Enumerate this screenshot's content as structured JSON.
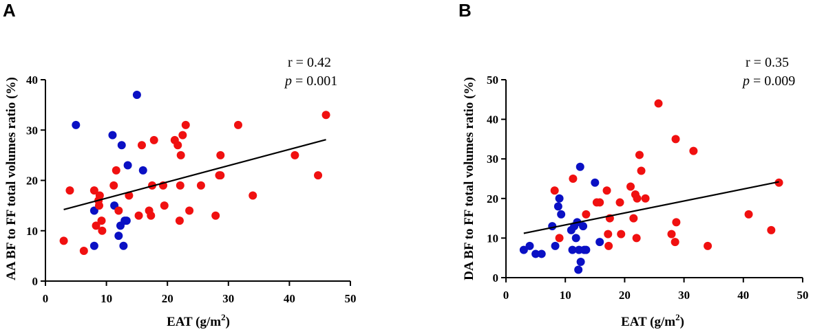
{
  "chart_data": [
    {
      "panel": "A",
      "type": "scatter",
      "xlabel": "EAT (g/m",
      "xlabel_sup": "2",
      "xlabel_close": ")",
      "ylabel": "AA BF to FF total volumes ratio  (%)",
      "xlim": [
        0,
        50
      ],
      "ylim": [
        0,
        40
      ],
      "xticks": [
        0,
        10,
        20,
        30,
        40,
        50
      ],
      "yticks": [
        0,
        10,
        20,
        30,
        40
      ],
      "r_text": "r = 0.42",
      "p_label": "p",
      "p_value": " = 0.001",
      "regression": {
        "x": [
          3,
          46
        ],
        "y": [
          14.2,
          28.1
        ]
      },
      "series": [
        {
          "name": "blue",
          "color": "#0a10c4",
          "points": [
            [
              5,
              31
            ],
            [
              8,
              14
            ],
            [
              8,
              7
            ],
            [
              11,
              29
            ],
            [
              11.3,
              15
            ],
            [
              12,
              9
            ],
            [
              12.3,
              11
            ],
            [
              12.5,
              27
            ],
            [
              12.8,
              7
            ],
            [
              13,
              12
            ],
            [
              13.3,
              12
            ],
            [
              13.5,
              23
            ],
            [
              15,
              37
            ],
            [
              16,
              22
            ]
          ]
        },
        {
          "name": "red",
          "color": "#f01010",
          "points": [
            [
              3,
              8
            ],
            [
              4,
              18
            ],
            [
              6.3,
              6
            ],
            [
              8,
              18
            ],
            [
              8.3,
              11
            ],
            [
              8.7,
              16
            ],
            [
              8.8,
              15
            ],
            [
              8.9,
              17
            ],
            [
              9.2,
              12
            ],
            [
              9.3,
              10
            ],
            [
              11.2,
              19
            ],
            [
              11.6,
              22
            ],
            [
              12,
              14
            ],
            [
              13.7,
              17
            ],
            [
              15.3,
              13
            ],
            [
              15.8,
              27
            ],
            [
              17,
              14
            ],
            [
              17.3,
              13
            ],
            [
              17.5,
              19
            ],
            [
              17.8,
              28
            ],
            [
              19.3,
              19
            ],
            [
              19.5,
              15
            ],
            [
              21.2,
              28
            ],
            [
              21.7,
              27
            ],
            [
              22,
              12
            ],
            [
              22.1,
              19
            ],
            [
              22.2,
              25
            ],
            [
              22.5,
              29
            ],
            [
              23,
              31
            ],
            [
              23.6,
              14
            ],
            [
              25.5,
              19
            ],
            [
              27.9,
              13
            ],
            [
              28.5,
              21
            ],
            [
              28.7,
              21
            ],
            [
              28.7,
              25
            ],
            [
              31.6,
              31
            ],
            [
              34,
              17
            ],
            [
              40.9,
              25
            ],
            [
              44.7,
              21
            ],
            [
              46,
              33
            ]
          ]
        }
      ]
    },
    {
      "panel": "B",
      "type": "scatter",
      "xlabel": "EAT (g/m",
      "xlabel_sup": "2",
      "xlabel_close": ")",
      "ylabel": "DA BF to FF total volumes ratio  (%)",
      "xlim": [
        0,
        50
      ],
      "ylim": [
        0,
        50
      ],
      "xticks": [
        0,
        10,
        20,
        30,
        40,
        50
      ],
      "yticks": [
        0,
        10,
        20,
        30,
        40,
        50
      ],
      "r_text": "r = 0.35",
      "p_label": "p",
      "p_value": " = 0.009",
      "regression": {
        "x": [
          3,
          46
        ],
        "y": [
          11.2,
          24.2
        ]
      },
      "series": [
        {
          "name": "blue",
          "color": "#0a10c4",
          "points": [
            [
              3,
              7
            ],
            [
              4,
              8
            ],
            [
              5,
              6
            ],
            [
              6,
              6
            ],
            [
              7.8,
              13
            ],
            [
              8.3,
              8
            ],
            [
              8.8,
              18
            ],
            [
              9,
              20
            ],
            [
              9.3,
              16
            ],
            [
              11,
              12
            ],
            [
              11.2,
              7
            ],
            [
              11.5,
              13
            ],
            [
              11.8,
              10
            ],
            [
              12,
              14
            ],
            [
              12.2,
              2
            ],
            [
              12.3,
              7
            ],
            [
              12.5,
              28
            ],
            [
              12.6,
              4
            ],
            [
              13,
              13
            ],
            [
              13.2,
              7
            ],
            [
              13.5,
              7
            ],
            [
              15,
              24
            ],
            [
              15.8,
              9
            ]
          ]
        },
        {
          "name": "red",
          "color": "#f01010",
          "points": [
            [
              8.2,
              22
            ],
            [
              9,
              10
            ],
            [
              11.3,
              25
            ],
            [
              13.5,
              16
            ],
            [
              15.3,
              19
            ],
            [
              15.8,
              19
            ],
            [
              17,
              22
            ],
            [
              17.2,
              11
            ],
            [
              17.3,
              8
            ],
            [
              17.5,
              15
            ],
            [
              19.2,
              19
            ],
            [
              19.4,
              11
            ],
            [
              21,
              23
            ],
            [
              21.5,
              15
            ],
            [
              21.8,
              21
            ],
            [
              22,
              10
            ],
            [
              22.1,
              20
            ],
            [
              22.5,
              31
            ],
            [
              22.8,
              27
            ],
            [
              23.5,
              20
            ],
            [
              25.7,
              44
            ],
            [
              27.9,
              11
            ],
            [
              28.5,
              9
            ],
            [
              28.6,
              35
            ],
            [
              28.7,
              14
            ],
            [
              31.6,
              32
            ],
            [
              34,
              8
            ],
            [
              40.9,
              16
            ],
            [
              44.7,
              12
            ],
            [
              46,
              24
            ]
          ]
        }
      ]
    }
  ]
}
